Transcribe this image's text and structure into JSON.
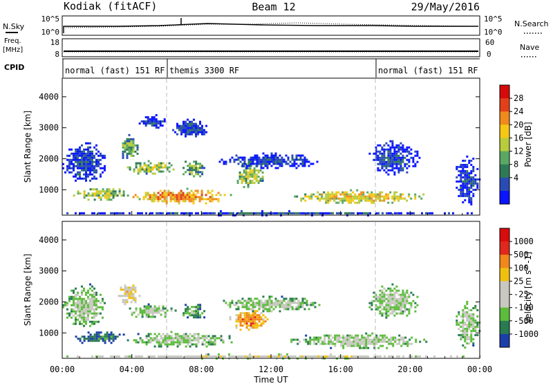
{
  "header": {
    "station": "Kodiak (fitACF)",
    "beam": "Beam 12",
    "date": "29/May/2016"
  },
  "top_panels": {
    "nsky_label": "N.Sky",
    "nsky_ticks": [
      "10^5",
      "10^0"
    ],
    "nsearch_label": "N.Search",
    "nsearch_ticks": [
      "10^5",
      "10^0"
    ],
    "freq_label": "Freq.",
    "freq_unit": "[MHz]",
    "freq_ticks": [
      "18",
      "8"
    ],
    "nave_label": "Nave",
    "nave_ticks": [
      "60",
      "0"
    ],
    "cpid_label": "CPID",
    "cpid_segments": [
      {
        "label": "normal (fast) 151 RF",
        "start_hour": 0
      },
      {
        "label": "themis 3300 RF",
        "start_hour": 6
      },
      {
        "label": "normal (fast) 151 RF",
        "start_hour": 18
      }
    ]
  },
  "chart_data": [
    {
      "type": "heatmap",
      "name": "power",
      "ylabel": "Slant Range [km]",
      "ylim": [
        180,
        4600
      ],
      "yticks": [
        1000,
        2000,
        3000,
        4000
      ],
      "colorbar": {
        "label": "Power [dB]",
        "ticks": [
          "4",
          "8",
          "12",
          "16",
          "20",
          "24",
          "28"
        ],
        "colors": [
          "#0a14ff",
          "#284cb4",
          "#2f7a56",
          "#5aa864",
          "#b8cc3c",
          "#f5c814",
          "#f08a1c",
          "#e1401a",
          "#d50b0b"
        ]
      },
      "regions": [
        {
          "t0": 3.8,
          "t1": 9.8,
          "r0": 550,
          "r1": 1050,
          "level": 6
        },
        {
          "t0": 0.5,
          "t1": 3.8,
          "r0": 650,
          "r1": 1100,
          "level": 4
        },
        {
          "t0": 3.6,
          "t1": 6.5,
          "r0": 1500,
          "r1": 1950,
          "level": 4
        },
        {
          "t0": 3.2,
          "t1": 4.4,
          "r0": 2000,
          "r1": 2800,
          "level": 3
        },
        {
          "t0": 6.8,
          "t1": 8.2,
          "r0": 1400,
          "r1": 2000,
          "level": 3
        },
        {
          "t0": 9.8,
          "t1": 11.6,
          "r0": 1100,
          "r1": 1850,
          "level": 4
        },
        {
          "t0": 13.2,
          "t1": 21.0,
          "r0": 550,
          "r1": 1000,
          "level": 5
        },
        {
          "t0": 0.0,
          "t1": 24.0,
          "r0": 180,
          "r1": 320,
          "level": 1
        },
        {
          "t0": 4.4,
          "t1": 6.0,
          "r0": 3000,
          "r1": 3450,
          "level": 1
        },
        {
          "t0": 6.2,
          "t1": 8.4,
          "r0": 2700,
          "r1": 3300,
          "level": 1
        },
        {
          "t0": 9.0,
          "t1": 14.8,
          "r0": 1700,
          "r1": 2200,
          "level": 1
        },
        {
          "t0": 17.5,
          "t1": 20.5,
          "r0": 1500,
          "r1": 2600,
          "level": 1
        },
        {
          "t0": 0.0,
          "t1": 2.5,
          "r0": 1200,
          "r1": 2600,
          "level": 1
        },
        {
          "t0": 22.5,
          "t1": 24.0,
          "r0": 500,
          "r1": 2100,
          "level": 1
        }
      ]
    },
    {
      "type": "heatmap",
      "name": "velocity",
      "ylabel": "Slant Range [km]",
      "xlabel": "Time UT",
      "xticks": [
        "00:00",
        "04:00",
        "08:00",
        "12:00",
        "16:00",
        "20:00",
        "00:00"
      ],
      "xlim": [
        0,
        24
      ],
      "ylim": [
        180,
        4600
      ],
      "yticks": [
        1000,
        2000,
        3000,
        4000
      ],
      "colorbar": {
        "label": "Velocity [m s^-1]",
        "ticks": [
          "1000",
          "500",
          "100",
          "25",
          "-25",
          "-100",
          "-500",
          "-1000"
        ],
        "colors": [
          "#1c3ea8",
          "#2a7a52",
          "#5cbc3c",
          "#c8c8c0",
          "#c8c8c0",
          "#f0c010",
          "#f0881c",
          "#e0281c",
          "#d80c0c"
        ]
      },
      "regions": [
        {
          "t0": 0.5,
          "t1": 3.6,
          "r0": 650,
          "r1": 1100,
          "level": 1
        },
        {
          "t0": 3.6,
          "t1": 9.8,
          "r0": 550,
          "r1": 1050,
          "level": 3
        },
        {
          "t0": 3.6,
          "t1": 6.5,
          "r0": 1500,
          "r1": 1950,
          "level": 3
        },
        {
          "t0": 9.6,
          "t1": 11.8,
          "r0": 1050,
          "r1": 1800,
          "level": 6
        },
        {
          "t0": 13.0,
          "t1": 21.0,
          "r0": 500,
          "r1": 1000,
          "level": 3
        },
        {
          "t0": 3.2,
          "t1": 4.4,
          "r0": 1900,
          "r1": 2700,
          "level": 5
        },
        {
          "t0": 6.8,
          "t1": 8.2,
          "r0": 1400,
          "r1": 2000,
          "level": 2
        },
        {
          "t0": 0.0,
          "t1": 24.0,
          "r0": 180,
          "r1": 320,
          "level": 4
        },
        {
          "t0": 9.0,
          "t1": 14.8,
          "r0": 1700,
          "r1": 2200,
          "level": 3
        },
        {
          "t0": 17.5,
          "t1": 20.5,
          "r0": 1500,
          "r1": 2600,
          "level": 3
        },
        {
          "t0": 0.0,
          "t1": 2.5,
          "r0": 1200,
          "r1": 2600,
          "level": 3
        },
        {
          "t0": 22.5,
          "t1": 24.0,
          "r0": 500,
          "r1": 2100,
          "level": 3
        }
      ]
    }
  ]
}
